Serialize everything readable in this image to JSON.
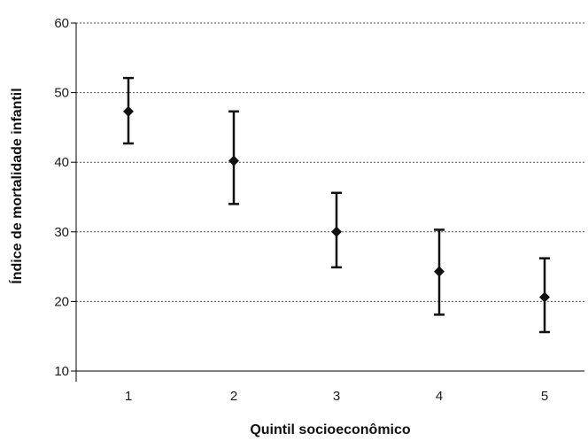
{
  "chart_data": {
    "type": "scatter",
    "title": "",
    "xlabel": "Quintil socioeconômico",
    "ylabel": "Índice de mortalidade infantil",
    "x_ticks": [
      "1",
      "2",
      "3",
      "4",
      "5"
    ],
    "y_ticks": [
      "10",
      "20",
      "30",
      "40",
      "50",
      "60"
    ],
    "ylim": [
      10,
      60
    ],
    "grid": "horizontal dotted",
    "series": [
      {
        "marker": "diamond",
        "error_bars": true,
        "points": [
          {
            "x": 1,
            "y": 47.3,
            "low": 42.7,
            "high": 52.1
          },
          {
            "x": 2,
            "y": 40.2,
            "low": 34.0,
            "high": 47.3
          },
          {
            "x": 3,
            "y": 30.0,
            "low": 24.9,
            "high": 35.6
          },
          {
            "x": 4,
            "y": 24.3,
            "low": 18.1,
            "high": 30.3
          },
          {
            "x": 5,
            "y": 20.6,
            "low": 15.6,
            "high": 26.2
          }
        ]
      }
    ],
    "colors": {
      "marker": "#111111",
      "grid": "#555555",
      "axis": "#000000"
    }
  }
}
